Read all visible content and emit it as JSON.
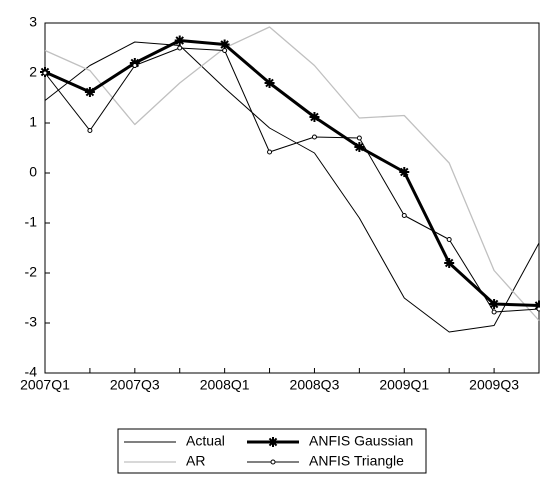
{
  "chart_data": {
    "type": "line",
    "categories": [
      "2007Q1",
      null,
      "2007Q3",
      null,
      "2008Q1",
      null,
      "2008Q3",
      null,
      "2009Q1",
      null,
      "2009Q3",
      null
    ],
    "series": [
      {
        "name": "Actual",
        "color": "#000000",
        "width": 1,
        "marker": "none",
        "values": [
          1.45,
          2.15,
          2.62,
          2.55,
          1.7,
          0.9,
          0.4,
          -0.9,
          -2.5,
          -3.18,
          -3.05,
          -1.4
        ]
      },
      {
        "name": "AR",
        "color": "#c0c0c0",
        "width": 1.3,
        "marker": "none",
        "values": [
          2.45,
          2.05,
          0.97,
          1.8,
          2.5,
          2.92,
          2.15,
          1.1,
          1.15,
          0.2,
          -1.95,
          -2.95
        ]
      },
      {
        "name": "ANFIS Gaussian",
        "color": "#000000",
        "width": 3,
        "marker": "star",
        "values": [
          2.02,
          1.62,
          2.2,
          2.65,
          2.57,
          1.8,
          1.12,
          0.52,
          0.02,
          -1.8,
          -2.62,
          -2.65
        ]
      },
      {
        "name": "ANFIS Triangle",
        "color": "#000000",
        "width": 1,
        "marker": "circle",
        "values": [
          2.0,
          0.85,
          2.15,
          2.5,
          2.45,
          0.42,
          0.72,
          0.7,
          -0.85,
          -1.33,
          -2.78,
          -2.72
        ]
      }
    ],
    "ylim": [
      -4,
      3
    ],
    "yticks": [
      -4,
      -3,
      -2,
      -1,
      0,
      1,
      2,
      3
    ],
    "grid": false
  }
}
